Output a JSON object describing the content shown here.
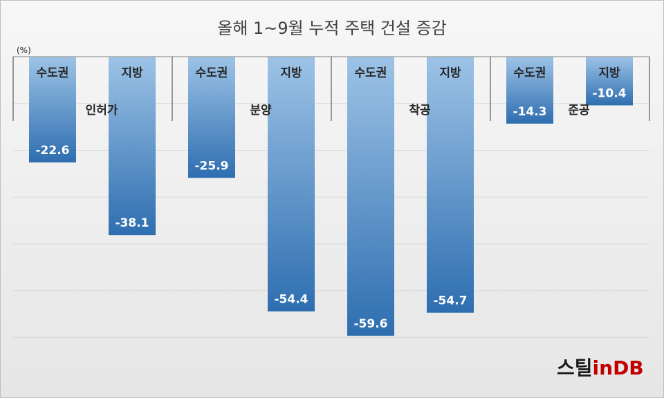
{
  "chart_data": {
    "type": "bar",
    "title": "올해 1~9월 누적 주택 건설 증감",
    "unit": "(%)",
    "ylim": [
      -66,
      0
    ],
    "grid": true,
    "categories": [
      "인허가",
      "분양",
      "착공",
      "준공"
    ],
    "series": [
      {
        "name": "수도권",
        "values": [
          -22.6,
          -25.9,
          -59.6,
          -14.3
        ]
      },
      {
        "name": "지방",
        "values": [
          -38.1,
          -54.4,
          -54.7,
          -10.4
        ]
      }
    ],
    "value_labels": [
      [
        "-22.6",
        "-25.9",
        "-59.6",
        "-14.3"
      ],
      [
        "-38.1",
        "-54.4",
        "-54.7",
        "-10.4"
      ]
    ]
  },
  "logo": {
    "text_main": "스틸",
    "text_in": "in",
    "text_db": "DB"
  },
  "colors": {
    "bar_dark": "#2e6eb0",
    "bar_light": "#9dc3e6",
    "gridline": "#d9d9d9",
    "axis": "#a6a6a6",
    "logo_dark": "#1a1a1a",
    "logo_red": "#c00000"
  }
}
